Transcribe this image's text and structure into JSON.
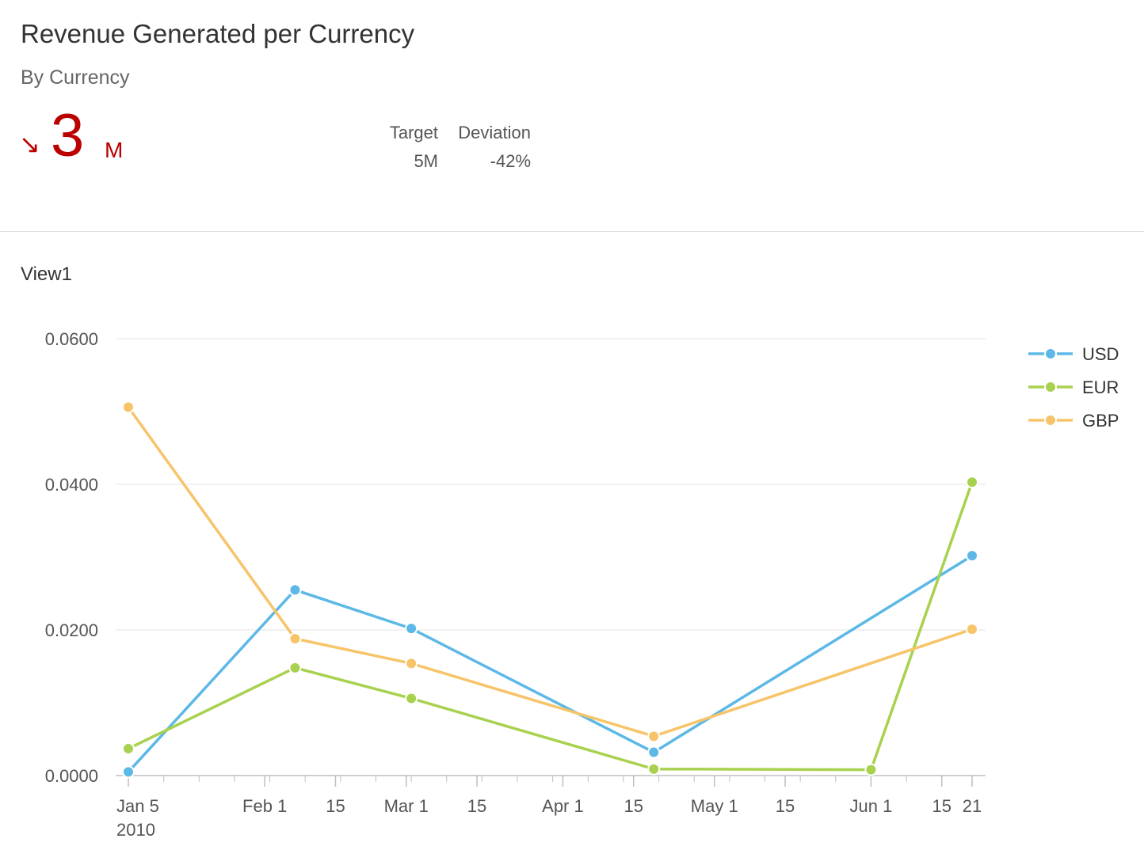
{
  "header": {
    "title": "Revenue Generated per Currency",
    "subtitle": "By Currency",
    "kpi": {
      "trend": "down",
      "trend_symbol": "↘",
      "value": "3",
      "unit": "M",
      "color": "#bb0000"
    },
    "target_label": "Target",
    "target_value": "5M",
    "deviation_label": "Deviation",
    "deviation_value": "-42%"
  },
  "view": {
    "title": "View1"
  },
  "chart_data": {
    "type": "line",
    "title": "",
    "xlabel": "",
    "ylabel": "",
    "x_type": "date",
    "x": [
      "2010-01-05",
      "2010-02-07",
      "2010-03-02",
      "2010-04-19",
      "2010-06-01",
      "2010-06-21"
    ],
    "xlim": [
      "2010-01-05",
      "2010-06-21"
    ],
    "ylim": [
      0,
      0.06
    ],
    "y_ticks": [
      0,
      0.02,
      0.04,
      0.06
    ],
    "y_tick_labels": [
      "0.0000",
      "0.0200",
      "0.0400",
      "0.0600"
    ],
    "x_ticks": [
      {
        "date": "2010-01-05",
        "label": "Jan 5",
        "sublabel": "2010"
      },
      {
        "date": "2010-02-01",
        "label": "Feb 1"
      },
      {
        "date": "2010-02-15",
        "label": "15"
      },
      {
        "date": "2010-03-01",
        "label": "Mar 1"
      },
      {
        "date": "2010-03-15",
        "label": "15"
      },
      {
        "date": "2010-04-01",
        "label": "Apr 1"
      },
      {
        "date": "2010-04-15",
        "label": "15"
      },
      {
        "date": "2010-05-01",
        "label": "May 1"
      },
      {
        "date": "2010-05-15",
        "label": "15"
      },
      {
        "date": "2010-06-01",
        "label": "Jun 1"
      },
      {
        "date": "2010-06-15",
        "label": "15"
      },
      {
        "date": "2010-06-21",
        "label": "21"
      }
    ],
    "grid": true,
    "legend_position": "right",
    "series": [
      {
        "name": "USD",
        "color": "#5cb8e6",
        "points": [
          {
            "x": "2010-01-05",
            "y": 0.0005
          },
          {
            "x": "2010-02-07",
            "y": 0.0255
          },
          {
            "x": "2010-03-02",
            "y": 0.0202
          },
          {
            "x": "2010-04-19",
            "y": 0.0032
          },
          {
            "x": "2010-06-21",
            "y": 0.0302
          }
        ]
      },
      {
        "name": "EUR",
        "color": "#a8d14f",
        "points": [
          {
            "x": "2010-01-05",
            "y": 0.0037
          },
          {
            "x": "2010-02-07",
            "y": 0.0148
          },
          {
            "x": "2010-03-02",
            "y": 0.0106
          },
          {
            "x": "2010-04-19",
            "y": 0.0009
          },
          {
            "x": "2010-06-01",
            "y": 0.0008
          },
          {
            "x": "2010-06-21",
            "y": 0.0403
          }
        ]
      },
      {
        "name": "GBP",
        "color": "#f7c469",
        "points": [
          {
            "x": "2010-01-05",
            "y": 0.0506
          },
          {
            "x": "2010-02-07",
            "y": 0.0188
          },
          {
            "x": "2010-03-02",
            "y": 0.0154
          },
          {
            "x": "2010-04-19",
            "y": 0.0054
          },
          {
            "x": "2010-06-21",
            "y": 0.0201
          }
        ]
      }
    ]
  }
}
